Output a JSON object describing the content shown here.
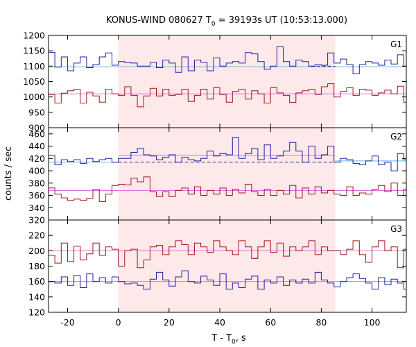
{
  "chart_data": {
    "type": "line",
    "title": "KONUS-WIND 080627 T",
    "title_sub": "0",
    "title_rest": " = 39193s UT (10:53:13.000)",
    "xlabel_main": "T - T",
    "xlabel_sub": "0",
    "xlabel_rest": ", s",
    "ylabel": "counts / sec",
    "xlim": [
      -27.5,
      113.5
    ],
    "x_ticks": [
      -20,
      0,
      20,
      40,
      60,
      80,
      100
    ],
    "x_tick_labels": [
      "-20",
      "0",
      "20",
      "40",
      "60",
      "80",
      "100"
    ],
    "shaded_interval": [
      0,
      85.5
    ],
    "colors": {
      "shade": "#fde8ea",
      "blue_step": "#1f1fa0",
      "blue_bg": "#5fb4e6",
      "red_step": "#a01418",
      "red_bg": "#e070d8"
    },
    "panels": [
      {
        "label": "G1",
        "ylim": [
          900,
          1200
        ],
        "y_ticks": [
          900,
          950,
          1000,
          1050,
          1100,
          1150,
          1200
        ],
        "y_tick_labels": [
          "900",
          "950",
          "1000",
          "1050",
          "1100",
          "1150",
          "1200"
        ],
        "series": [
          {
            "color_key": "blue",
            "edges": [
              -27.5,
              -25,
              -22.5,
              -20,
              -17.5,
              -15,
              -12.5,
              -10,
              -7.5,
              -5,
              -2.5,
              0,
              2.5,
              5,
              7.5,
              10,
              12.5,
              15,
              17.5,
              20,
              22.5,
              25,
              27.5,
              30,
              32.5,
              35,
              37.5,
              40,
              42.5,
              45,
              47.5,
              50,
              52.5,
              55,
              57.5,
              60,
              62.5,
              65,
              67.5,
              70,
              72.5,
              75,
              77.5,
              80,
              82.5,
              85,
              87.5,
              90,
              92.5,
              95,
              97.5,
              100,
              102.5,
              105,
              107.5,
              110,
              112.5,
              113.5
            ],
            "values": [
              1145,
              1097,
              1130,
              1085,
              1110,
              1130,
              1095,
              1105,
              1130,
              1143,
              1103,
              1115,
              1112,
              1110,
              1100,
              1100,
              1113,
              1095,
              1120,
              1110,
              1080,
              1130,
              1085,
              1120,
              1113,
              1085,
              1127,
              1100,
              1110,
              1115,
              1110,
              1144,
              1140,
              1115,
              1090,
              1100,
              1163,
              1115,
              1100,
              1120,
              1115,
              1100,
              1105,
              1103,
              1143,
              1110,
              1123,
              1105,
              1075,
              1105,
              1115,
              1110,
              1103,
              1120,
              1107,
              1137,
              1100,
              1100
            ],
            "background": {
              "segments": [
                [
                  -27.5,
                  113.5,
                  1098
                ]
              ]
            },
            "dashed": {
              "from": 76,
              "to": 85.5,
              "value": 1100
            }
          },
          {
            "color_key": "red",
            "edges": [
              -27.5,
              -25,
              -22.5,
              -20,
              -17.5,
              -15,
              -12.5,
              -10,
              -7.5,
              -5,
              -2.5,
              0,
              2.5,
              5,
              7.5,
              10,
              12.5,
              15,
              17.5,
              20,
              22.5,
              25,
              27.5,
              30,
              32.5,
              35,
              37.5,
              40,
              42.5,
              45,
              47.5,
              50,
              52.5,
              55,
              57.5,
              60,
              62.5,
              65,
              67.5,
              70,
              72.5,
              75,
              77.5,
              80,
              82.5,
              85,
              87.5,
              90,
              92.5,
              95,
              97.5,
              100,
              102.5,
              105,
              107.5,
              110,
              112.5,
              113.5
            ],
            "values": [
              1008,
              980,
              1012,
              1020,
              1025,
              980,
              1015,
              1003,
              983,
              1025,
              1010,
              1005,
              1033,
              1005,
              968,
              1003,
              1028,
              1003,
              1025,
              1005,
              1008,
              1025,
              985,
              1005,
              1025,
              993,
              1030,
              1008,
              983,
              1018,
              1025,
              993,
              1020,
              1010,
              980,
              1030,
              1013,
              1005,
              982,
              1013,
              1020,
              1025,
              1008,
              1033,
              1043,
              1000,
              1018,
              1030,
              1005,
              1025,
              1022,
              1005,
              1013,
              1022,
              1010,
              1035,
              983,
              1000
            ],
            "background": {
              "segments": [
                [
                  -27.5,
                  113.5,
                  1010
                ]
              ]
            }
          }
        ]
      },
      {
        "label": "G2",
        "ylim": [
          320,
          470
        ],
        "y_ticks": [
          320,
          340,
          360,
          380,
          400,
          420,
          440,
          460
        ],
        "y_tick_labels": [
          "320",
          "340",
          "360",
          "380",
          "400",
          "420",
          "440",
          "460"
        ],
        "series": [
          {
            "color_key": "blue",
            "edges": [
              -27.5,
              -25,
              -22.5,
              -20,
              -17.5,
              -15,
              -12.5,
              -10,
              -7.5,
              -5,
              -2.5,
              0,
              2.5,
              5,
              7.5,
              10,
              12.5,
              15,
              17.5,
              20,
              22.5,
              25,
              27.5,
              30,
              32.5,
              35,
              37.5,
              40,
              42.5,
              45,
              47.5,
              50,
              52.5,
              55,
              57.5,
              60,
              62.5,
              65,
              67.5,
              70,
              72.5,
              75,
              77.5,
              80,
              82.5,
              85,
              87.5,
              90,
              92.5,
              95,
              97.5,
              100,
              102.5,
              105,
              107.5,
              110,
              112.5,
              113.5
            ],
            "values": [
              425,
              410,
              418,
              415,
              418,
              412,
              420,
              415,
              418,
              420,
              414,
              420,
              420,
              430,
              436,
              426,
              424,
              418,
              422,
              426,
              414,
              422,
              418,
              416,
              420,
              432,
              424,
              428,
              426,
              454,
              420,
              428,
              436,
              418,
              442,
              420,
              424,
              432,
              446,
              432,
              414,
              440,
              420,
              426,
              440,
              414,
              420,
              418,
              412,
              410,
              416,
              424,
              410,
              414,
              400,
              428,
              418,
              410
            ],
            "background": {
              "segments": [
                [
                  -27.5,
                  0,
                  414
                ],
                [
                  0,
                  85.5,
                  425
                ],
                [
                  85.5,
                  113.5,
                  416
                ]
              ]
            },
            "dashed": {
              "from": 0,
              "to": 85.5,
              "value": 414
            }
          },
          {
            "color_key": "red",
            "edges": [
              -27.5,
              -25,
              -22.5,
              -20,
              -17.5,
              -15,
              -12.5,
              -10,
              -7.5,
              -5,
              -2.5,
              0,
              2.5,
              5,
              7.5,
              10,
              12.5,
              15,
              17.5,
              20,
              22.5,
              25,
              27.5,
              30,
              32.5,
              35,
              37.5,
              40,
              42.5,
              45,
              47.5,
              50,
              52.5,
              55,
              57.5,
              60,
              62.5,
              65,
              67.5,
              70,
              72.5,
              75,
              77.5,
              80,
              82.5,
              85,
              87.5,
              90,
              92.5,
              95,
              97.5,
              100,
              102.5,
              105,
              107.5,
              110,
              112.5,
              113.5
            ],
            "values": [
              372,
              362,
              356,
              352,
              354,
              352,
              355,
              370,
              350,
              362,
              376,
              378,
              377,
              388,
              382,
              390,
              366,
              358,
              366,
              358,
              368,
              372,
              362,
              374,
              360,
              368,
              362,
              372,
              360,
              370,
              364,
              378,
              366,
              360,
              370,
              360,
              368,
              362,
              376,
              356,
              372,
              362,
              374,
              364,
              368,
              362,
              360,
              374,
              360,
              364,
              362,
              370,
              376,
              366,
              380,
              360,
              370,
              362
            ],
            "background": {
              "segments": [
                [
                  -27.5,
                  113.5,
                  368
                ]
              ]
            }
          }
        ]
      },
      {
        "label": "G3",
        "ylim": [
          120,
          240
        ],
        "y_ticks": [
          120,
          140,
          160,
          180,
          200,
          220
        ],
        "y_tick_labels": [
          "120",
          "140",
          "160",
          "180",
          "200",
          "220"
        ],
        "series": [
          {
            "color_key": "red",
            "edges": [
              -27.5,
              -25,
              -22.5,
              -20,
              -17.5,
              -15,
              -12.5,
              -10,
              -7.5,
              -5,
              -2.5,
              0,
              2.5,
              5,
              7.5,
              10,
              12.5,
              15,
              17.5,
              20,
              22.5,
              25,
              27.5,
              30,
              32.5,
              35,
              37.5,
              40,
              42.5,
              45,
              47.5,
              50,
              52.5,
              55,
              57.5,
              60,
              62.5,
              65,
              67.5,
              70,
              72.5,
              75,
              77.5,
              80,
              82.5,
              85,
              87.5,
              90,
              92.5,
              95,
              97.5,
              100,
              102.5,
              105,
              107.5,
              110,
              112.5,
              113.5
            ],
            "values": [
              194,
              184,
              210,
              186,
              206,
              188,
              196,
              210,
              194,
              205,
              202,
              180,
              200,
              202,
              178,
              188,
              205,
              207,
              195,
              205,
              213,
              208,
              195,
              210,
              205,
              198,
              213,
              205,
              200,
              195,
              213,
              205,
              190,
              205,
              213,
              198,
              210,
              193,
              205,
              200,
              205,
              213,
              195,
              205,
              200,
              200,
              195,
              202,
              213,
              195,
              185,
              205,
              213,
              200,
              205,
              178,
              202,
              205
            ],
            "background": {
              "segments": [
                [
                  -27.5,
                  113.5,
                  200
                ]
              ]
            }
          },
          {
            "color_key": "blue",
            "edges": [
              -27.5,
              -25,
              -22.5,
              -20,
              -17.5,
              -15,
              -12.5,
              -10,
              -7.5,
              -5,
              -2.5,
              0,
              2.5,
              5,
              7.5,
              10,
              12.5,
              15,
              17.5,
              20,
              22.5,
              25,
              27.5,
              30,
              32.5,
              35,
              37.5,
              40,
              42.5,
              45,
              47.5,
              50,
              52.5,
              55,
              57.5,
              60,
              62.5,
              65,
              67.5,
              70,
              72.5,
              75,
              77.5,
              80,
              82.5,
              85,
              87.5,
              90,
              92.5,
              95,
              97.5,
              100,
              102.5,
              105,
              107.5,
              110,
              112.5,
              113.5
            ],
            "values": [
              160,
              158,
              166,
              155,
              168,
              152,
              170,
              160,
              165,
              158,
              166,
              160,
              157,
              158,
              155,
              150,
              163,
              172,
              162,
              154,
              166,
              174,
              160,
              158,
              167,
              162,
              155,
              170,
              150,
              158,
              152,
              163,
              167,
              150,
              162,
              158,
              166,
              155,
              162,
              158,
              163,
              158,
              172,
              162,
              158,
              153,
              160,
              165,
              170,
              164,
              158,
              150,
              165,
              156,
              163,
              158,
              150,
              160
            ],
            "background": {
              "segments": [
                [
                  -27.5,
                  113.5,
                  160
                ]
              ]
            }
          }
        ]
      }
    ]
  }
}
